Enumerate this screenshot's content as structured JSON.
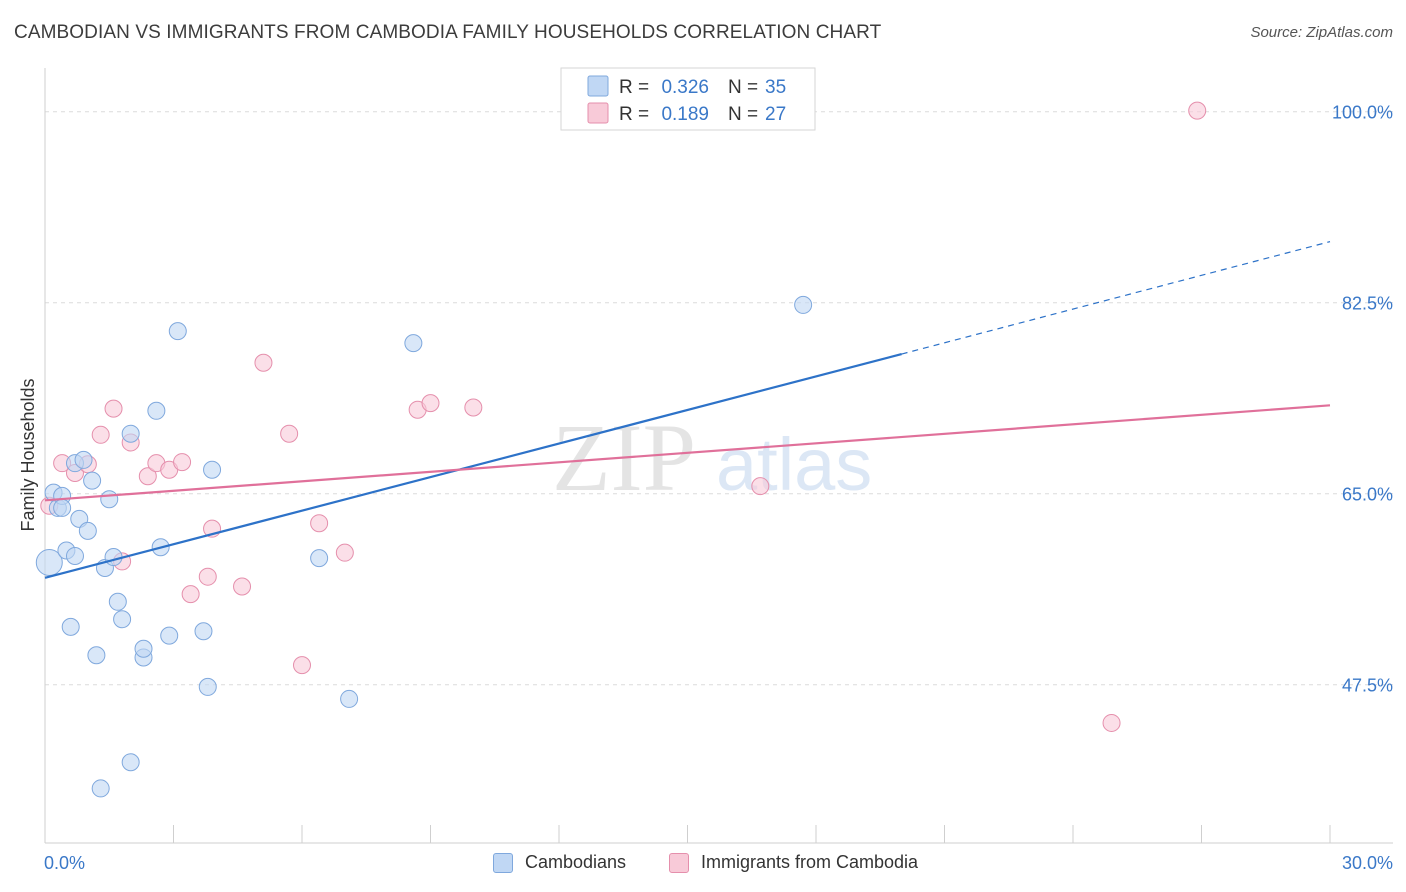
{
  "header": {
    "title": "CAMBODIAN VS IMMIGRANTS FROM CAMBODIA FAMILY HOUSEHOLDS CORRELATION CHART",
    "source": "Source: ZipAtlas.com"
  },
  "watermark": {
    "zip": "ZIP",
    "atlas": "atlas"
  },
  "chart_data": {
    "type": "scatter",
    "title": "CAMBODIAN VS IMMIGRANTS FROM CAMBODIA FAMILY HOUSEHOLDS CORRELATION CHART",
    "xlabel": "",
    "ylabel": "Family Households",
    "xlim": [
      0,
      30
    ],
    "ylim": [
      33,
      103
    ],
    "x_tick_labels": [
      "0.0%",
      "30.0%"
    ],
    "y_ticks": [
      47.5,
      65.0,
      82.5,
      100.0
    ],
    "y_tick_labels": [
      "47.5%",
      "65.0%",
      "82.5%",
      "100.0%"
    ],
    "grid": true,
    "legend_placement": "top-center",
    "colors": {
      "cambodians_fill": "#c0d7f4",
      "cambodians_stroke": "#7fa8dd",
      "cambodians_line": "#2d72c8",
      "immigrants_fill": "#f8cad8",
      "immigrants_stroke": "#e58fac",
      "immigrants_line": "#e0709a",
      "accent_text": "#3a78c8"
    },
    "stats": [
      {
        "r_label": "R =",
        "r": "0.326",
        "n_label": "N =",
        "n": "35"
      },
      {
        "r_label": "R =",
        "r": "0.189",
        "n_label": "N =",
        "n": "27"
      }
    ],
    "series": [
      {
        "name": "Cambodians",
        "trend": {
          "x0": 0,
          "y0": 57.3,
          "x1": 20,
          "y1": 77.8,
          "dash_to_x": 30,
          "dash_to_y": 88.1
        },
        "points": [
          [
            0.1,
            58.7
          ],
          [
            0.2,
            65.1
          ],
          [
            0.3,
            63.7
          ],
          [
            0.4,
            64.8
          ],
          [
            0.4,
            63.7
          ],
          [
            0.5,
            59.8
          ],
          [
            0.6,
            52.8
          ],
          [
            0.7,
            67.8
          ],
          [
            0.7,
            59.3
          ],
          [
            0.8,
            62.7
          ],
          [
            0.9,
            68.1
          ],
          [
            1.0,
            61.6
          ],
          [
            1.1,
            66.2
          ],
          [
            1.2,
            50.2
          ],
          [
            1.3,
            38.0
          ],
          [
            1.4,
            58.2
          ],
          [
            1.5,
            64.5
          ],
          [
            1.6,
            59.2
          ],
          [
            1.7,
            55.1
          ],
          [
            1.8,
            53.5
          ],
          [
            2.0,
            70.5
          ],
          [
            2.0,
            40.4
          ],
          [
            2.3,
            50.0
          ],
          [
            2.3,
            50.8
          ],
          [
            2.6,
            72.6
          ],
          [
            2.7,
            60.1
          ],
          [
            2.9,
            52.0
          ],
          [
            3.1,
            79.9
          ],
          [
            3.7,
            52.4
          ],
          [
            3.8,
            47.3
          ],
          [
            3.9,
            67.2
          ],
          [
            6.4,
            59.1
          ],
          [
            7.1,
            46.2
          ],
          [
            8.6,
            78.8
          ],
          [
            17.7,
            82.3
          ]
        ]
      },
      {
        "name": "Immigrants from Cambodia",
        "trend": {
          "x0": 0,
          "y0": 64.4,
          "x1": 30,
          "y1": 73.1
        },
        "points": [
          [
            0.1,
            63.9
          ],
          [
            0.4,
            67.8
          ],
          [
            0.7,
            66.9
          ],
          [
            1.0,
            67.7
          ],
          [
            1.3,
            70.4
          ],
          [
            1.6,
            72.8
          ],
          [
            1.8,
            58.8
          ],
          [
            2.0,
            69.7
          ],
          [
            2.4,
            66.6
          ],
          [
            2.6,
            67.8
          ],
          [
            2.9,
            67.2
          ],
          [
            3.2,
            67.9
          ],
          [
            3.4,
            55.8
          ],
          [
            3.8,
            57.4
          ],
          [
            3.9,
            61.8
          ],
          [
            4.6,
            56.5
          ],
          [
            5.1,
            77.0
          ],
          [
            5.7,
            70.5
          ],
          [
            6.0,
            49.3
          ],
          [
            6.4,
            62.3
          ],
          [
            7.0,
            59.6
          ],
          [
            8.7,
            72.7
          ],
          [
            9.0,
            73.3
          ],
          [
            10.0,
            72.9
          ],
          [
            16.7,
            65.7
          ],
          [
            24.9,
            44.0
          ],
          [
            26.9,
            100.1
          ]
        ]
      }
    ]
  }
}
